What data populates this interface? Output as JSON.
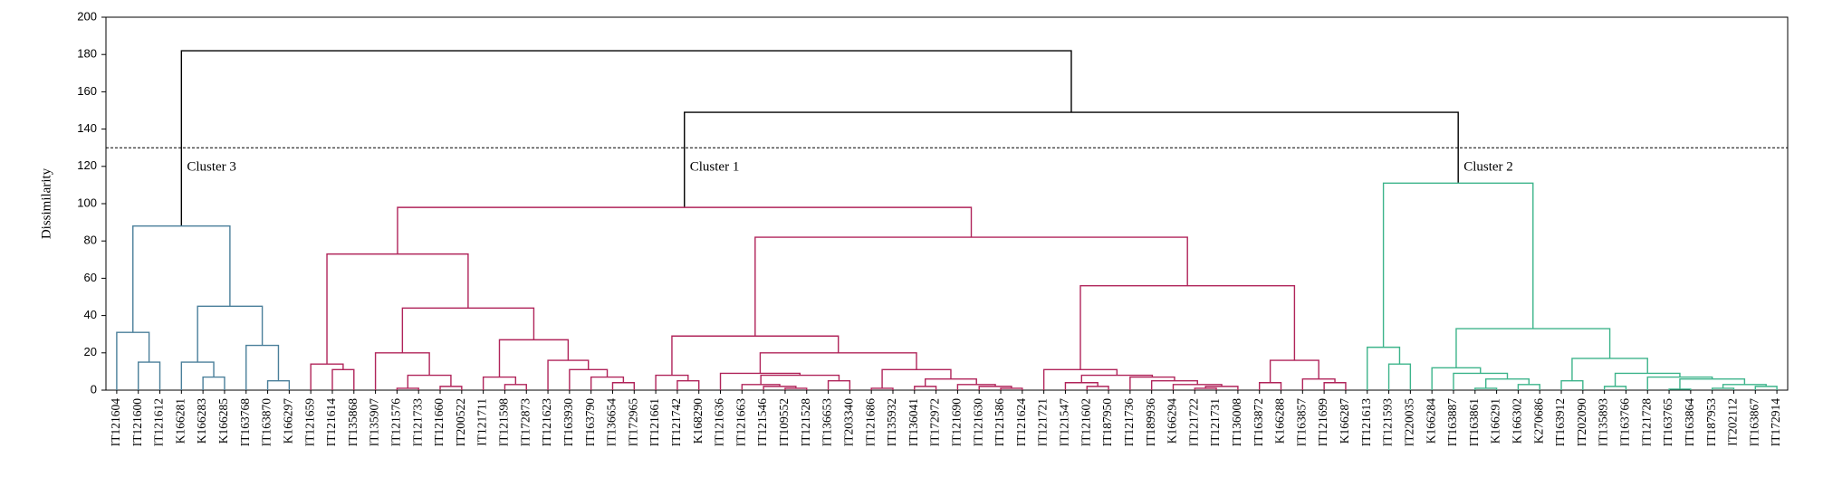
{
  "chart_data": {
    "type": "dendrogram",
    "y_label": "Dissimilarity",
    "ylim": [
      0,
      200
    ],
    "yticks": [
      0,
      20,
      40,
      60,
      80,
      100,
      120,
      140,
      160,
      180,
      200
    ],
    "cut": 130,
    "link_color": "#000000",
    "clusters": [
      {
        "name": "Cluster 3",
        "color": "#4a7f9a"
      },
      {
        "name": "Cluster 1",
        "color": "#b0245a"
      },
      {
        "name": "Cluster 2",
        "color": "#3db48b"
      }
    ],
    "leaves": [
      "IT121604",
      "IT121600",
      "IT121612",
      "K166281",
      "K166283",
      "K166285",
      "IT163768",
      "IT163870",
      "K166297",
      "IT121659",
      "IT121614",
      "IT135868",
      "IT135907",
      "IT121576",
      "IT121733",
      "IT121660",
      "IT200522",
      "IT121711",
      "IT121598",
      "IT172873",
      "IT121623",
      "IT163930",
      "IT163790",
      "IT136654",
      "IT172965",
      "IT121661",
      "IT121742",
      "K168290",
      "IT121636",
      "IT121663",
      "IT121546",
      "IT109552",
      "IT121528",
      "IT136653",
      "IT203340",
      "IT121686",
      "IT135932",
      "IT136041",
      "IT172972",
      "IT121690",
      "IT121630",
      "IT121586",
      "IT121624",
      "IT121721",
      "IT121547",
      "IT121602",
      "IT187950",
      "IT121736",
      "IT189936",
      "K166294",
      "IT121722",
      "IT121731",
      "IT136008",
      "IT163872",
      "K166288",
      "IT163857",
      "IT121699",
      "K166287",
      "IT121613",
      "IT121593",
      "IT220035",
      "K166284",
      "IT163887",
      "IT163861",
      "K166291",
      "K166302",
      "K270686",
      "IT163912",
      "IT202090",
      "IT135893",
      "IT163766",
      "IT121728",
      "IT163765",
      "IT163864",
      "IT187953",
      "IT202112",
      "IT163867",
      "IT172914"
    ],
    "merges": [
      [
        1,
        2,
        15
      ],
      [
        0,
        78,
        31
      ],
      [
        4,
        5,
        7
      ],
      [
        3,
        80,
        15
      ],
      [
        7,
        8,
        5
      ],
      [
        6,
        82,
        24
      ],
      [
        81,
        83,
        45
      ],
      [
        79,
        84,
        88
      ],
      [
        10,
        11,
        11
      ],
      [
        9,
        86,
        14
      ],
      [
        13,
        14,
        1
      ],
      [
        15,
        16,
        2
      ],
      [
        88,
        89,
        8
      ],
      [
        12,
        90,
        20
      ],
      [
        18,
        19,
        3
      ],
      [
        17,
        92,
        7
      ],
      [
        23,
        24,
        4
      ],
      [
        22,
        94,
        7
      ],
      [
        21,
        95,
        11
      ],
      [
        20,
        96,
        16
      ],
      [
        93,
        97,
        27
      ],
      [
        91,
        98,
        44
      ],
      [
        87,
        99,
        73
      ],
      [
        26,
        27,
        5
      ],
      [
        25,
        101,
        8
      ],
      [
        31,
        32,
        1
      ],
      [
        30,
        103,
        2
      ],
      [
        29,
        104,
        3
      ],
      [
        33,
        34,
        5
      ],
      [
        105,
        106,
        8
      ],
      [
        28,
        107,
        9
      ],
      [
        35,
        36,
        1
      ],
      [
        41,
        42,
        1
      ],
      [
        40,
        110,
        2
      ],
      [
        39,
        111,
        3
      ],
      [
        37,
        38,
        2
      ],
      [
        113,
        112,
        6
      ],
      [
        109,
        114,
        11
      ],
      [
        108,
        115,
        20
      ],
      [
        102,
        116,
        29
      ],
      [
        45,
        46,
        2
      ],
      [
        44,
        118,
        4
      ],
      [
        50,
        51,
        1
      ],
      [
        120,
        52,
        2
      ],
      [
        49,
        121,
        3
      ],
      [
        48,
        122,
        5
      ],
      [
        47,
        123,
        7
      ],
      [
        119,
        124,
        8
      ],
      [
        43,
        125,
        11
      ],
      [
        53,
        54,
        4
      ],
      [
        56,
        57,
        4
      ],
      [
        55,
        128,
        6
      ],
      [
        127,
        129,
        16
      ],
      [
        126,
        130,
        56
      ],
      [
        117,
        131,
        82
      ],
      [
        100,
        132,
        98
      ],
      [
        59,
        60,
        14
      ],
      [
        58,
        134,
        23
      ],
      [
        63,
        64,
        1
      ],
      [
        65,
        66,
        3
      ],
      [
        136,
        137,
        6
      ],
      [
        62,
        138,
        9
      ],
      [
        61,
        139,
        12
      ],
      [
        67,
        68,
        5
      ],
      [
        72,
        73,
        0.5
      ],
      [
        74,
        75,
        1
      ],
      [
        76,
        77,
        2
      ],
      [
        143,
        144,
        3
      ],
      [
        142,
        145,
        6
      ],
      [
        69,
        70,
        2
      ],
      [
        71,
        146,
        7
      ],
      [
        147,
        148,
        9
      ],
      [
        141,
        149,
        17
      ],
      [
        140,
        150,
        33
      ],
      [
        135,
        151,
        111
      ],
      [
        133,
        152,
        149
      ],
      [
        85,
        153,
        182
      ]
    ]
  }
}
